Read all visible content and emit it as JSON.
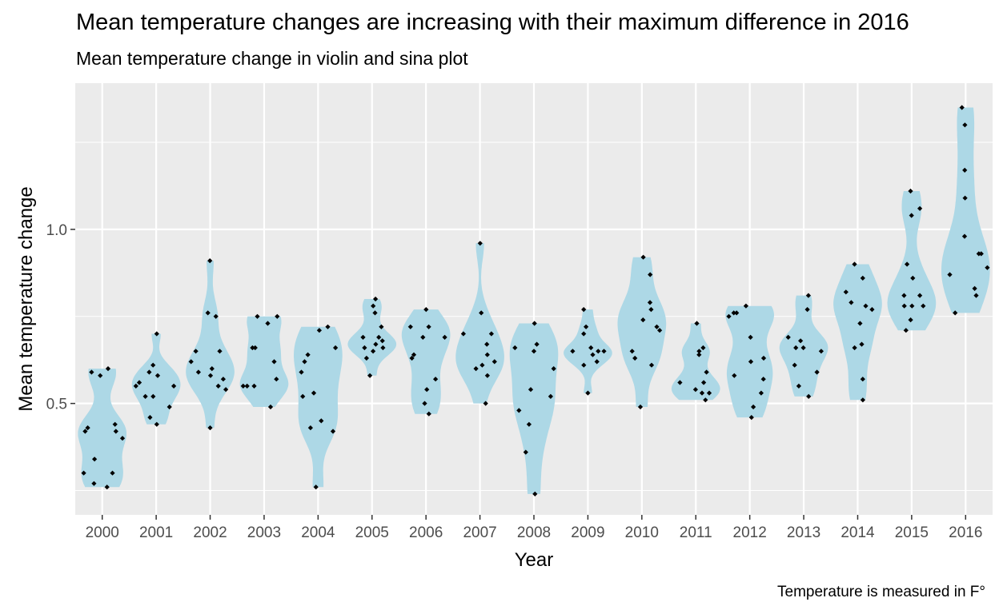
{
  "chart_data": {
    "type": "violin",
    "title": "Mean temperature changes are increasing with their maximum difference in 2016",
    "subtitle": "Mean temperature change in violin and sina plot",
    "caption": "Temperature is measured in F°",
    "xlabel": "Year",
    "ylabel": "Mean temperature change",
    "ylim": [
      0.18,
      1.42
    ],
    "y_ticks": [
      0.5,
      1.0
    ],
    "y_tick_labels": [
      "0.5",
      "1.0"
    ],
    "grid": true,
    "violin_color": "#add8e6",
    "point_color": "#000000",
    "panel_background": "#ebebeb",
    "grid_color": "#ffffff",
    "categories": [
      "2000",
      "2001",
      "2002",
      "2003",
      "2004",
      "2005",
      "2006",
      "2007",
      "2008",
      "2009",
      "2010",
      "2011",
      "2012",
      "2013",
      "2014",
      "2015",
      "2016"
    ],
    "points": [
      [
        0.6,
        0.59,
        0.58,
        0.44,
        0.43,
        0.42,
        0.42,
        0.4,
        0.34,
        0.3,
        0.3,
        0.27,
        0.26
      ],
      [
        0.7,
        0.61,
        0.59,
        0.58,
        0.56,
        0.55,
        0.55,
        0.52,
        0.52,
        0.49,
        0.46,
        0.44
      ],
      [
        0.91,
        0.76,
        0.75,
        0.65,
        0.65,
        0.62,
        0.6,
        0.59,
        0.58,
        0.57,
        0.55,
        0.54,
        0.43
      ],
      [
        0.75,
        0.75,
        0.73,
        0.66,
        0.66,
        0.62,
        0.57,
        0.55,
        0.55,
        0.55,
        0.49
      ],
      [
        0.72,
        0.71,
        0.66,
        0.64,
        0.62,
        0.59,
        0.53,
        0.52,
        0.45,
        0.43,
        0.42,
        0.26
      ],
      [
        0.8,
        0.78,
        0.76,
        0.72,
        0.69,
        0.69,
        0.68,
        0.67,
        0.66,
        0.66,
        0.65,
        0.63,
        0.58
      ],
      [
        0.77,
        0.72,
        0.72,
        0.69,
        0.69,
        0.64,
        0.63,
        0.57,
        0.54,
        0.5,
        0.47
      ],
      [
        0.96,
        0.76,
        0.7,
        0.7,
        0.67,
        0.64,
        0.62,
        0.61,
        0.6,
        0.58,
        0.5
      ],
      [
        0.73,
        0.67,
        0.66,
        0.65,
        0.6,
        0.54,
        0.52,
        0.48,
        0.44,
        0.36,
        0.24
      ],
      [
        0.77,
        0.72,
        0.7,
        0.66,
        0.65,
        0.65,
        0.65,
        0.64,
        0.62,
        0.61,
        0.53
      ],
      [
        0.92,
        0.87,
        0.79,
        0.77,
        0.74,
        0.72,
        0.71,
        0.65,
        0.63,
        0.61,
        0.49
      ],
      [
        0.73,
        0.66,
        0.65,
        0.64,
        0.59,
        0.56,
        0.56,
        0.54,
        0.53,
        0.53,
        0.51
      ],
      [
        0.78,
        0.76,
        0.76,
        0.75,
        0.69,
        0.63,
        0.62,
        0.58,
        0.57,
        0.53,
        0.49,
        0.46
      ],
      [
        0.81,
        0.77,
        0.69,
        0.68,
        0.66,
        0.66,
        0.65,
        0.61,
        0.59,
        0.55,
        0.52
      ],
      [
        0.9,
        0.86,
        0.82,
        0.79,
        0.78,
        0.77,
        0.73,
        0.67,
        0.66,
        0.57,
        0.51
      ],
      [
        1.11,
        1.06,
        1.04,
        0.9,
        0.86,
        0.81,
        0.81,
        0.78,
        0.78,
        0.78,
        0.74,
        0.71
      ],
      [
        1.35,
        1.3,
        1.17,
        1.09,
        0.98,
        0.93,
        0.93,
        0.89,
        0.87,
        0.83,
        0.81,
        0.76
      ]
    ]
  }
}
